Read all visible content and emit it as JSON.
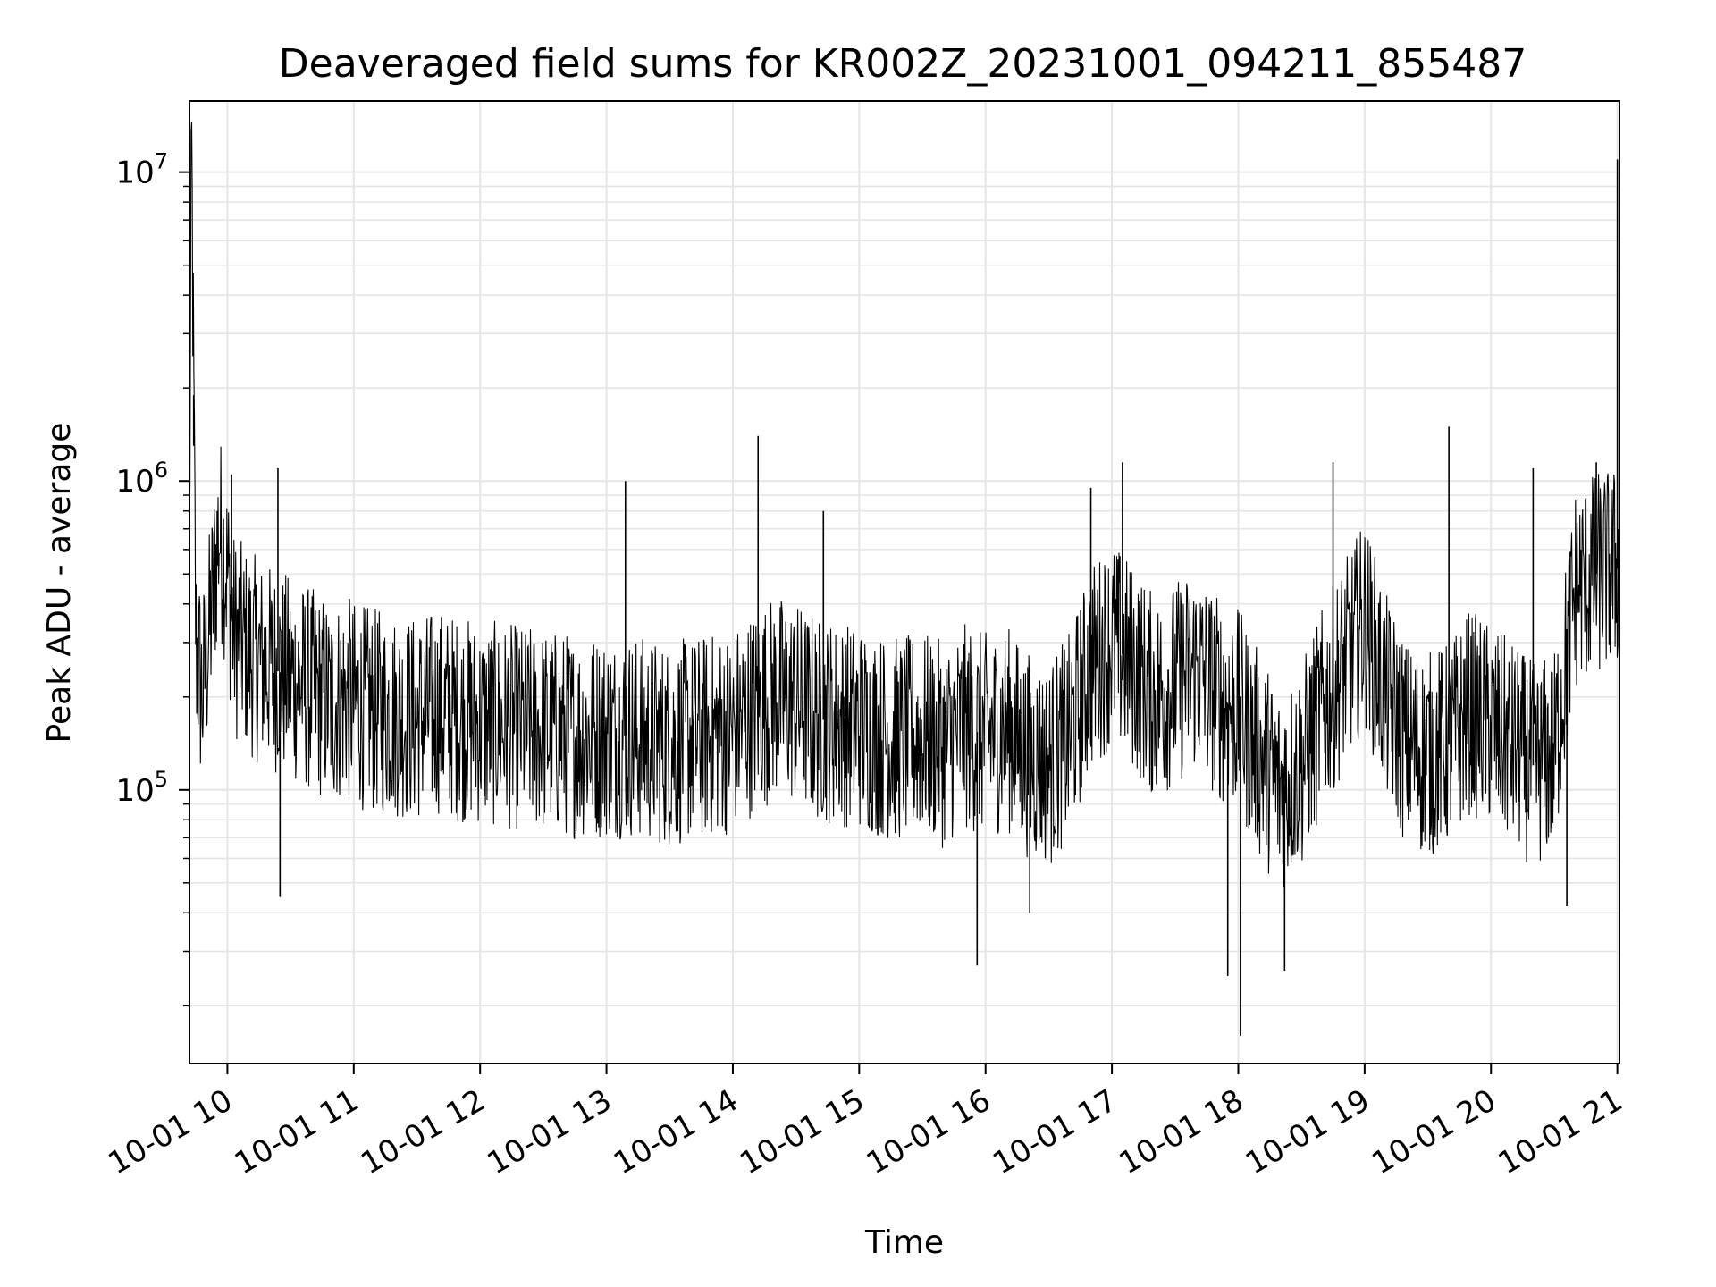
{
  "chart_data": {
    "type": "line",
    "title": "Deaveraged field sums for KR002Z_20231001_094211_855487",
    "xlabel": "Time",
    "ylabel": "Peak ADU - average",
    "yscale": "log",
    "ylim": [
      13000,
      17000000
    ],
    "xlim": [
      "2023-10-01 09:42",
      "2023-10-01 21:01"
    ],
    "grid": true,
    "line_color": "#000000",
    "grid_color": "#e5e5e5",
    "xticks": [
      {
        "value": "2023-10-01 10:00",
        "label": "10-01 10"
      },
      {
        "value": "2023-10-01 11:00",
        "label": "10-01 11"
      },
      {
        "value": "2023-10-01 12:00",
        "label": "10-01 12"
      },
      {
        "value": "2023-10-01 13:00",
        "label": "10-01 13"
      },
      {
        "value": "2023-10-01 14:00",
        "label": "10-01 14"
      },
      {
        "value": "2023-10-01 15:00",
        "label": "10-01 15"
      },
      {
        "value": "2023-10-01 16:00",
        "label": "10-01 16"
      },
      {
        "value": "2023-10-01 17:00",
        "label": "10-01 17"
      },
      {
        "value": "2023-10-01 18:00",
        "label": "10-01 18"
      },
      {
        "value": "2023-10-01 19:00",
        "label": "10-01 19"
      },
      {
        "value": "2023-10-01 20:00",
        "label": "10-01 20"
      },
      {
        "value": "2023-10-01 21:00",
        "label": "10-01 21"
      }
    ],
    "yticks": [
      {
        "value": 100000,
        "base": "10",
        "exp": "5"
      },
      {
        "value": 1000000,
        "base": "10",
        "exp": "6"
      },
      {
        "value": 10000000,
        "base": "10",
        "exp": "7"
      }
    ],
    "series": [
      {
        "x": [
          "2023-10-01 09:42",
          "2023-10-01 09:43",
          "2023-10-01 09:45",
          "2023-10-01 09:48",
          "2023-10-01 09:52",
          "2023-10-01 09:56",
          "2023-10-01 10:00",
          "2023-10-01 10:03",
          "2023-10-01 10:06",
          "2023-10-01 10:10",
          "2023-10-01 10:15",
          "2023-10-01 10:20",
          "2023-10-01 10:25",
          "2023-10-01 10:30",
          "2023-10-01 10:35",
          "2023-10-01 10:40",
          "2023-10-01 10:45",
          "2023-10-01 10:50",
          "2023-10-01 10:55",
          "2023-10-01 11:00",
          "2023-10-01 11:10",
          "2023-10-01 11:20",
          "2023-10-01 11:30",
          "2023-10-01 11:40",
          "2023-10-01 11:50",
          "2023-10-01 12:00",
          "2023-10-01 12:15",
          "2023-10-01 12:30",
          "2023-10-01 12:45",
          "2023-10-01 13:00",
          "2023-10-01 13:10",
          "2023-10-01 13:20",
          "2023-10-01 13:30",
          "2023-10-01 13:40",
          "2023-10-01 13:50",
          "2023-10-01 14:00",
          "2023-10-01 14:10",
          "2023-10-01 14:20",
          "2023-10-01 14:30",
          "2023-10-01 14:40",
          "2023-10-01 14:50",
          "2023-10-01 15:00",
          "2023-10-01 15:10",
          "2023-10-01 15:20",
          "2023-10-01 15:30",
          "2023-10-01 15:40",
          "2023-10-01 15:50",
          "2023-10-01 16:00",
          "2023-10-01 16:10",
          "2023-10-01 16:20",
          "2023-10-01 16:30",
          "2023-10-01 16:40",
          "2023-10-01 16:50",
          "2023-10-01 17:00",
          "2023-10-01 17:10",
          "2023-10-01 17:20",
          "2023-10-01 17:30",
          "2023-10-01 17:40",
          "2023-10-01 17:50",
          "2023-10-01 18:00",
          "2023-10-01 18:10",
          "2023-10-01 18:20",
          "2023-10-01 18:30",
          "2023-10-01 18:40",
          "2023-10-01 18:50",
          "2023-10-01 19:00",
          "2023-10-01 19:10",
          "2023-10-01 19:20",
          "2023-10-01 19:30",
          "2023-10-01 19:40",
          "2023-10-01 19:50",
          "2023-10-01 20:00",
          "2023-10-01 20:10",
          "2023-10-01 20:20",
          "2023-10-01 20:30",
          "2023-10-01 20:40",
          "2023-10-01 20:50",
          "2023-10-01 21:00"
        ],
        "y": [
          600000,
          12000000,
          300000,
          200000,
          350000,
          700000,
          500000,
          320000,
          300000,
          280000,
          260000,
          250000,
          240000,
          230000,
          220000,
          210000,
          200000,
          190000,
          200000,
          190000,
          180000,
          175000,
          170000,
          180000,
          170000,
          165000,
          160000,
          155000,
          150000,
          150000,
          150000,
          145000,
          140000,
          145000,
          150000,
          155000,
          180000,
          200000,
          190000,
          170000,
          165000,
          160000,
          150000,
          145000,
          150000,
          140000,
          160000,
          150000,
          160000,
          130000,
          120000,
          150000,
          250000,
          300000,
          250000,
          200000,
          220000,
          250000,
          200000,
          180000,
          130000,
          100000,
          120000,
          180000,
          250000,
          350000,
          200000,
          140000,
          130000,
          140000,
          180000,
          160000,
          140000,
          120000,
          130000,
          450000,
          500000,
          520000
        ],
        "spikes": [
          {
            "x": "2023-10-01 09:43",
            "y": 12000000
          },
          {
            "x": "2023-10-01 09:44",
            "y": 1300000
          },
          {
            "x": "2023-10-01 10:02",
            "y": 1050000
          },
          {
            "x": "2023-10-01 10:24",
            "y": 1100000
          },
          {
            "x": "2023-10-01 13:09",
            "y": 1000000
          },
          {
            "x": "2023-10-01 14:12",
            "y": 1400000
          },
          {
            "x": "2023-10-01 14:43",
            "y": 800000
          },
          {
            "x": "2023-10-01 16:50",
            "y": 950000
          },
          {
            "x": "2023-10-01 17:05",
            "y": 1150000
          },
          {
            "x": "2023-10-01 18:45",
            "y": 1150000
          },
          {
            "x": "2023-10-01 19:40",
            "y": 1500000
          },
          {
            "x": "2023-10-01 20:20",
            "y": 1100000
          },
          {
            "x": "2023-10-01 20:50",
            "y": 1150000
          },
          {
            "x": "2023-10-01 21:00",
            "y": 11000000
          },
          {
            "x": "2023-10-01 18:01",
            "y": 16000
          },
          {
            "x": "2023-10-01 15:56",
            "y": 27000
          },
          {
            "x": "2023-10-01 16:21",
            "y": 40000
          },
          {
            "x": "2023-10-01 10:25",
            "y": 45000
          },
          {
            "x": "2023-10-01 20:36",
            "y": 42000
          },
          {
            "x": "2023-10-01 17:55",
            "y": 25000
          },
          {
            "x": "2023-10-01 18:22",
            "y": 26000
          }
        ]
      }
    ]
  }
}
